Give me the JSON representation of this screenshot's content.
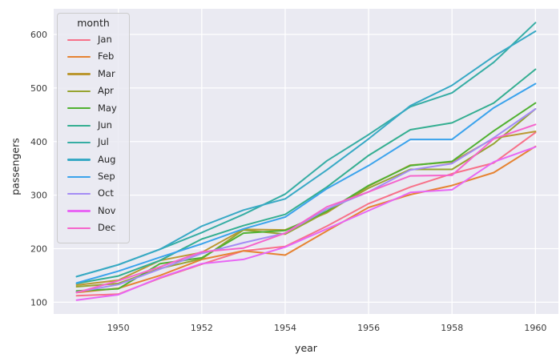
{
  "figure": {
    "background": "#ffffff",
    "axes_background": "#eaeaf2",
    "grid_color": "#ffffff",
    "text_color": "#262626"
  },
  "chart_data": {
    "type": "line",
    "title": "",
    "xlabel": "year",
    "ylabel": "passengers",
    "grid": true,
    "legend": {
      "title": "month",
      "position": "upper-left"
    },
    "xlim": [
      1948.45,
      1960.55
    ],
    "ylim": [
      78.1,
      647.9
    ],
    "xticks": [
      "1950",
      "1952",
      "1954",
      "1956",
      "1958",
      "1960"
    ],
    "xtick_values": [
      1950,
      1952,
      1954,
      1956,
      1958,
      1960
    ],
    "yticks": [
      "100",
      "200",
      "300",
      "400",
      "500",
      "600"
    ],
    "ytick_values": [
      100,
      200,
      300,
      400,
      500,
      600
    ],
    "x": [
      1949,
      1950,
      1951,
      1952,
      1953,
      1954,
      1955,
      1956,
      1957,
      1958,
      1959,
      1960
    ],
    "series": [
      {
        "name": "Jan",
        "color": "#f77189",
        "values": [
          112,
          115,
          145,
          171,
          196,
          204,
          242,
          284,
          315,
          340,
          360,
          417
        ]
      },
      {
        "name": "Feb",
        "color": "#e68332",
        "values": [
          118,
          126,
          150,
          180,
          196,
          188,
          233,
          277,
          301,
          318,
          342,
          391
        ]
      },
      {
        "name": "Mar",
        "color": "#bb9832",
        "values": [
          132,
          141,
          178,
          193,
          236,
          235,
          267,
          317,
          356,
          362,
          406,
          419
        ]
      },
      {
        "name": "Apr",
        "color": "#97a431",
        "values": [
          129,
          135,
          163,
          181,
          235,
          227,
          269,
          313,
          348,
          348,
          396,
          461
        ]
      },
      {
        "name": "May",
        "color": "#50b131",
        "values": [
          121,
          125,
          172,
          183,
          229,
          234,
          270,
          318,
          355,
          363,
          420,
          472
        ]
      },
      {
        "name": "Jun",
        "color": "#34ae91",
        "values": [
          135,
          149,
          178,
          218,
          243,
          264,
          315,
          374,
          422,
          435,
          472,
          535
        ]
      },
      {
        "name": "Jul",
        "color": "#36ada4",
        "values": [
          148,
          170,
          199,
          230,
          264,
          302,
          364,
          413,
          465,
          491,
          548,
          622
        ]
      },
      {
        "name": "Aug",
        "color": "#38a9c5",
        "values": [
          148,
          170,
          199,
          242,
          272,
          293,
          347,
          405,
          467,
          505,
          559,
          606
        ]
      },
      {
        "name": "Sep",
        "color": "#3ba3ec",
        "values": [
          136,
          158,
          184,
          209,
          237,
          259,
          312,
          355,
          404,
          404,
          463,
          508
        ]
      },
      {
        "name": "Oct",
        "color": "#a48cf4",
        "values": [
          119,
          133,
          162,
          191,
          211,
          229,
          274,
          306,
          347,
          359,
          407,
          461
        ]
      },
      {
        "name": "Nov",
        "color": "#e866f4",
        "values": [
          104,
          114,
          146,
          172,
          180,
          203,
          237,
          271,
          305,
          310,
          362,
          390
        ]
      },
      {
        "name": "Dec",
        "color": "#f565cc",
        "values": [
          118,
          140,
          166,
          194,
          201,
          229,
          278,
          306,
          336,
          337,
          405,
          432
        ]
      }
    ]
  }
}
